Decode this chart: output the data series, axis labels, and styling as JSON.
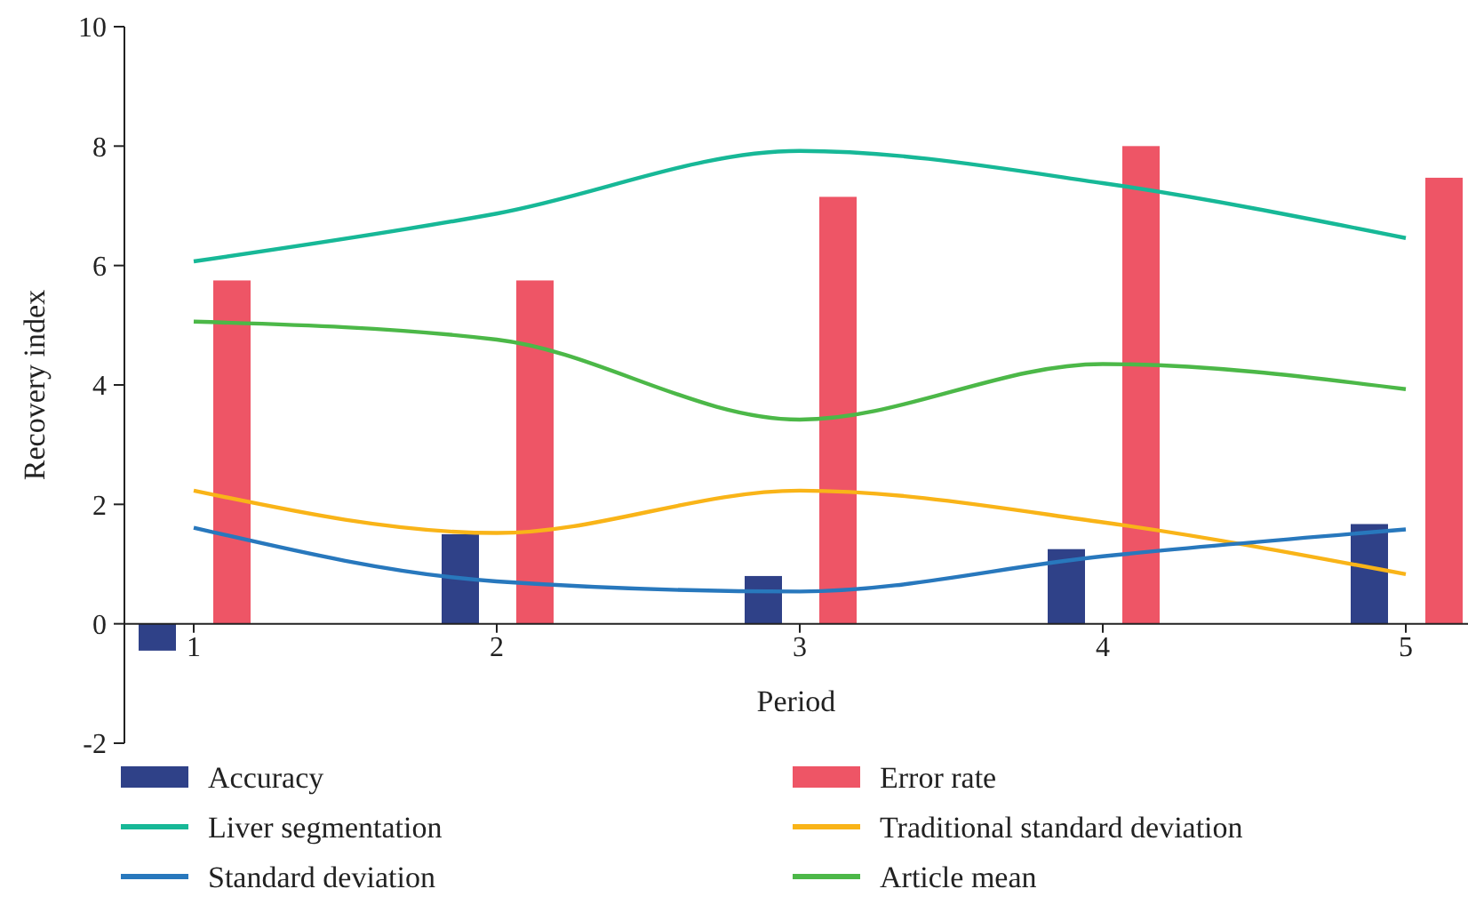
{
  "chart_data": {
    "type": "bar",
    "xlabel": "Period",
    "ylabel": "Recovery index",
    "categories": [
      "1",
      "2",
      "3",
      "4",
      "5"
    ],
    "ylim": [
      -2,
      10
    ],
    "yticks": [
      -2,
      0,
      2,
      4,
      6,
      8,
      10
    ],
    "grid": false,
    "legend": "bottom",
    "series": [
      {
        "name": "Accuracy",
        "color": "#2f4188",
        "values": [
          -0.45,
          1.5,
          0.8,
          1.25,
          1.67
        ]
      },
      {
        "name": "Error rate",
        "color": "#ee5566",
        "values": [
          5.75,
          5.75,
          7.15,
          8.0,
          7.47
        ]
      },
      {
        "name": "Liver segmentation",
        "type": "line",
        "color": "#17b897",
        "values": [
          6.07,
          6.87,
          7.92,
          7.38,
          6.46
        ]
      },
      {
        "name": "Traditional standard deviation",
        "type": "line",
        "color": "#f9b418",
        "values": [
          2.23,
          1.52,
          2.23,
          1.7,
          0.83
        ]
      },
      {
        "name": "Standard deviation",
        "type": "line",
        "color": "#2878bd",
        "values": [
          1.61,
          0.71,
          0.54,
          1.13,
          1.58
        ]
      },
      {
        "name": "Article mean",
        "type": "line",
        "color": "#4cb848",
        "values": [
          5.06,
          4.76,
          3.42,
          4.35,
          3.93
        ]
      }
    ]
  }
}
